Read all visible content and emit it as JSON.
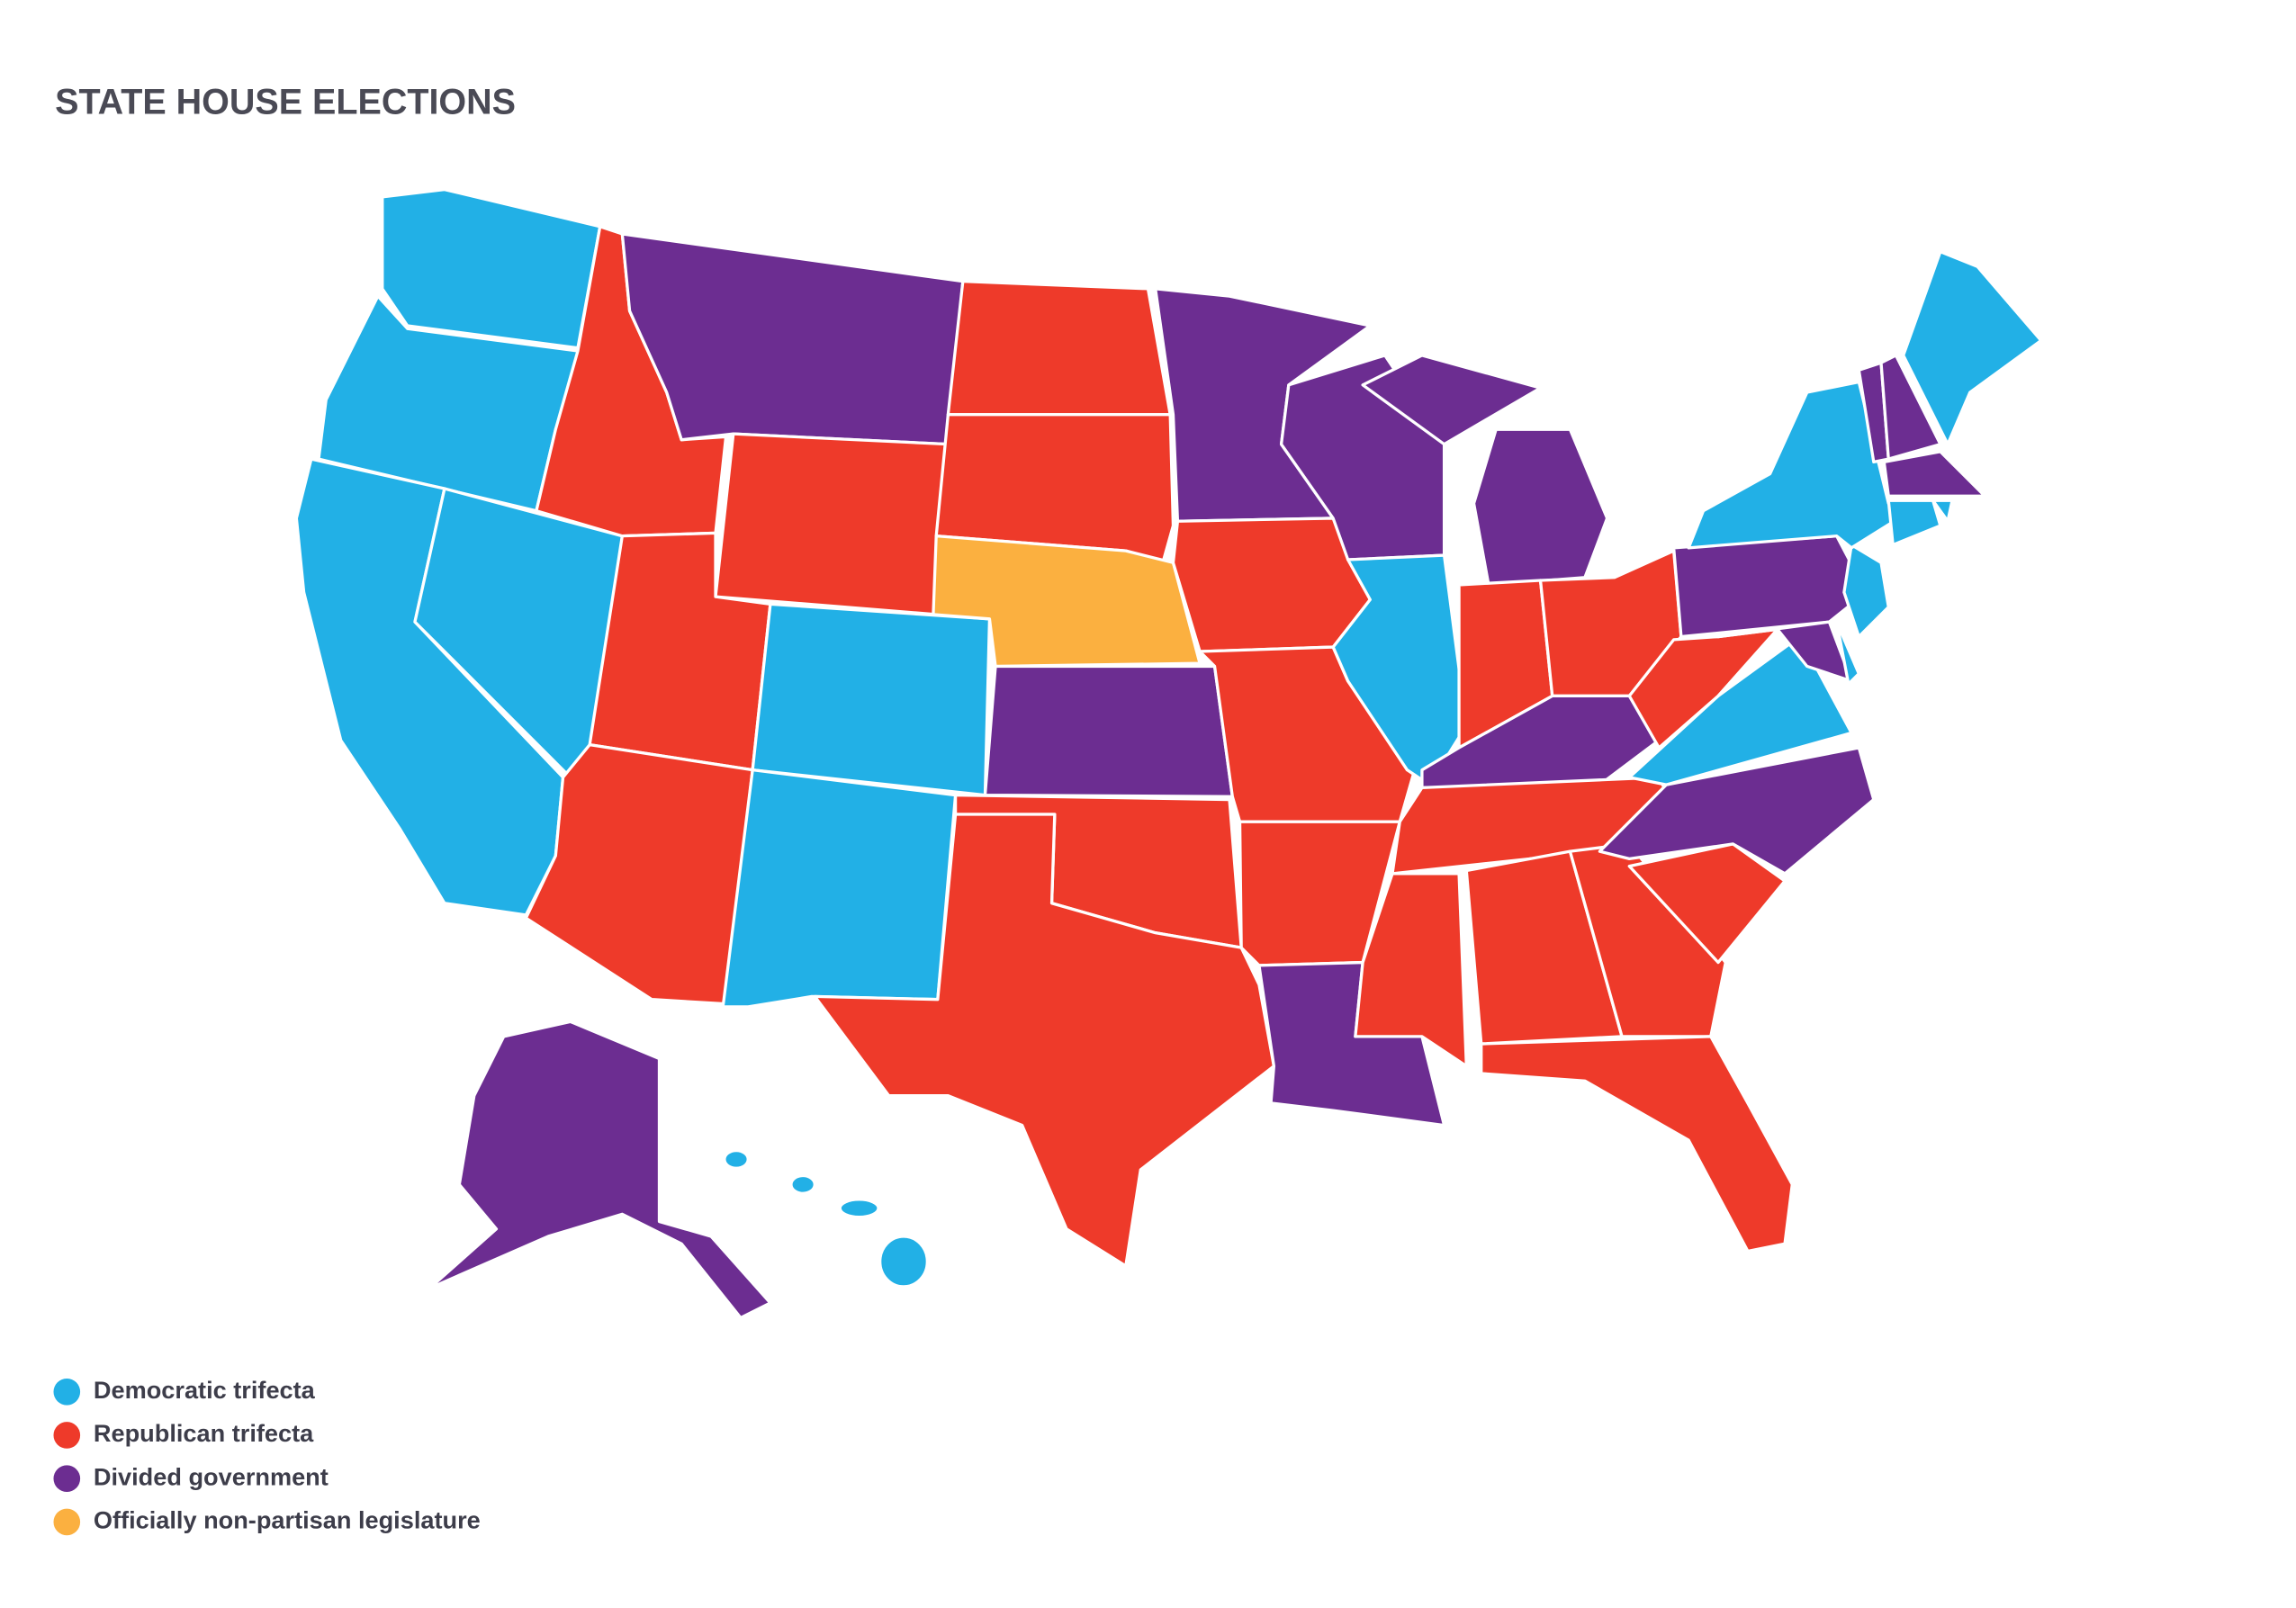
{
  "title": "STATE HOUSE ELECTIONS",
  "legend": [
    {
      "label": "Democratic trifecta",
      "color": "#22b0e6"
    },
    {
      "label": "Republican trifecta",
      "color": "#ee3a2a"
    },
    {
      "label": "Divided government",
      "color": "#6c2d91"
    },
    {
      "label": "Officially non-partisan legislature",
      "color": "#fbb040"
    }
  ]
}
